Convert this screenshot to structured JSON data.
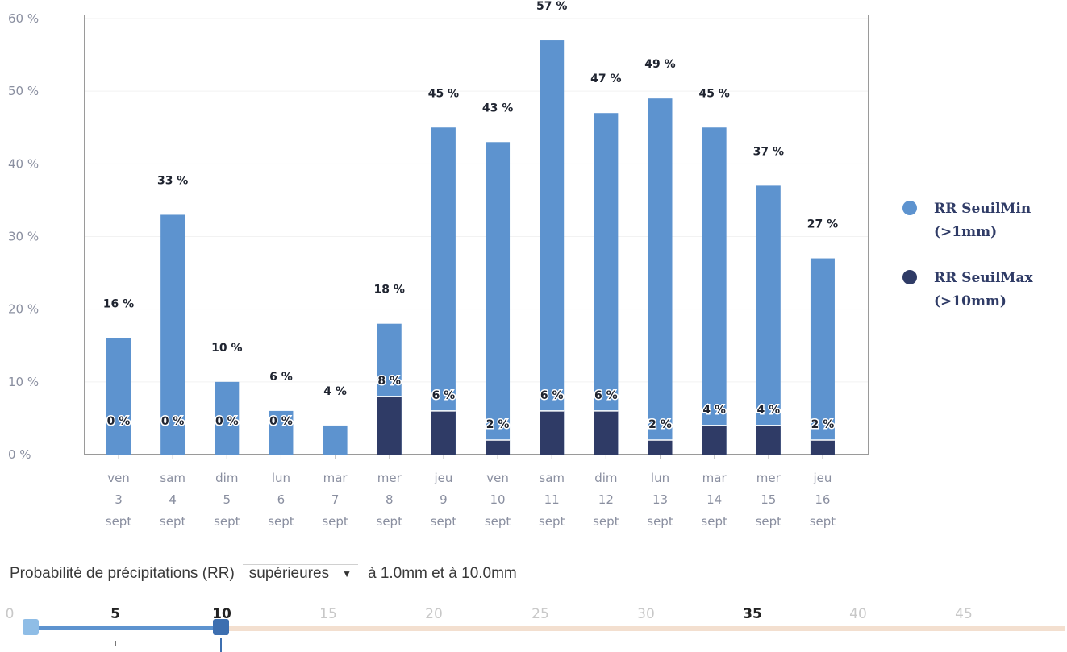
{
  "chart_data": {
    "type": "bar",
    "categories": [
      [
        "ven",
        "3",
        "sept"
      ],
      [
        "sam",
        "4",
        "sept"
      ],
      [
        "dim",
        "5",
        "sept"
      ],
      [
        "lun",
        "6",
        "sept"
      ],
      [
        "mar",
        "7",
        "sept"
      ],
      [
        "mer",
        "8",
        "sept"
      ],
      [
        "jeu",
        "9",
        "sept"
      ],
      [
        "ven",
        "10",
        "sept"
      ],
      [
        "sam",
        "11",
        "sept"
      ],
      [
        "dim",
        "12",
        "sept"
      ],
      [
        "lun",
        "13",
        "sept"
      ],
      [
        "mar",
        "14",
        "sept"
      ],
      [
        "mer",
        "15",
        "sept"
      ],
      [
        "jeu",
        "16",
        "sept"
      ]
    ],
    "series": [
      {
        "name": "RR SeuilMin (>1mm)",
        "color": "#5d93cf",
        "values": [
          16,
          33,
          10,
          6,
          4,
          18,
          45,
          43,
          57,
          47,
          49,
          45,
          37,
          27
        ],
        "labels": [
          "16 %",
          "33 %",
          "10 %",
          "6 %",
          "4 %",
          "18 %",
          "45 %",
          "43 %",
          "57 %",
          "47 %",
          "49 %",
          "45 %",
          "37 %",
          "27 %"
        ]
      },
      {
        "name": "RR SeuilMax (>10mm)",
        "color": "#2f3b66",
        "values": [
          0,
          0,
          0,
          0,
          null,
          8,
          6,
          2,
          6,
          6,
          2,
          4,
          4,
          2
        ],
        "labels": [
          "0 %",
          "0 %",
          "0 %",
          "0 %",
          null,
          "8 %",
          "6 %",
          "2 %",
          "6 %",
          "6 %",
          "2 %",
          "4 %",
          "4 %",
          "2 %"
        ]
      }
    ],
    "ylim": [
      0,
      60
    ],
    "yticks": [
      "0 %",
      "10 %",
      "20 %",
      "30 %",
      "40 %",
      "50 %",
      "60 %"
    ],
    "legend_position": "right",
    "legend": [
      {
        "line1": "RR SeuilMin",
        "line2": "(>1mm)",
        "color": "#5d93cf"
      },
      {
        "line1": "RR SeuilMax",
        "line2": "(>10mm)",
        "color": "#2f3b66"
      }
    ]
  },
  "controls": {
    "prefix": "Probabilité de précipitations (RR)",
    "select_value": "supérieures",
    "suffix": "à 1.0mm et à 10.0mm"
  },
  "slider": {
    "labels": [
      "0",
      "5",
      "10",
      "15",
      "20",
      "25",
      "30",
      "35",
      "40",
      "45"
    ],
    "min_value": 1,
    "max_value": 10
  }
}
